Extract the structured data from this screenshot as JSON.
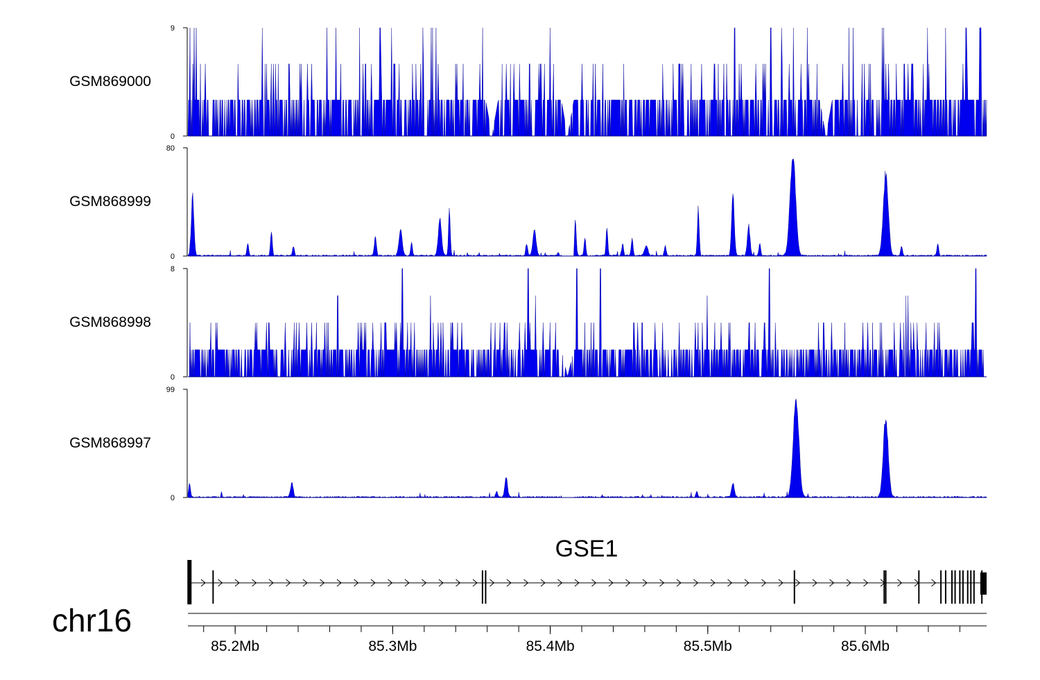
{
  "chart_data": {
    "type": "area",
    "chromosome": "chr16",
    "x_range_mb": [
      85.17,
      85.677
    ],
    "x_ticks": [
      {
        "value": 85.2,
        "label": "85.2Mb"
      },
      {
        "value": 85.3,
        "label": "85.3Mb"
      },
      {
        "value": 85.4,
        "label": "85.4Mb"
      },
      {
        "value": 85.5,
        "label": "85.5Mb"
      },
      {
        "value": 85.6,
        "label": "85.6Mb"
      }
    ],
    "fill_color": "#0000ee",
    "tracks": [
      {
        "name": "GSM869000",
        "ymin_label": "0",
        "ymax_label": "9",
        "ylim": [
          0,
          9
        ],
        "signal": "sparse-discrete",
        "baseline": 3,
        "levels": [
          3,
          6,
          9
        ],
        "gaps": [
          85.363,
          85.411,
          85.575
        ],
        "spikes": [
          [
            85.292,
            9
          ],
          [
            85.517,
            9
          ],
          [
            85.54,
            9
          ],
          [
            85.664,
            9
          ],
          [
            85.673,
            9
          ]
        ]
      },
      {
        "name": "GSM868999",
        "ymin_label": "0",
        "ymax_label": "80",
        "ylim": [
          0,
          80
        ],
        "signal": "peaks",
        "peaks": [
          [
            85.173,
            48,
            0.0012
          ],
          [
            85.208,
            10,
            0.0008
          ],
          [
            85.223,
            20,
            0.0008
          ],
          [
            85.237,
            8,
            0.0008
          ],
          [
            85.289,
            14,
            0.001
          ],
          [
            85.305,
            20,
            0.0015
          ],
          [
            85.312,
            10,
            0.0008
          ],
          [
            85.33,
            28,
            0.0015
          ],
          [
            85.336,
            38,
            0.0008
          ],
          [
            85.385,
            10,
            0.0008
          ],
          [
            85.39,
            20,
            0.0015
          ],
          [
            85.405,
            2,
            0.0008
          ],
          [
            85.416,
            28,
            0.0008
          ],
          [
            85.422,
            14,
            0.0008
          ],
          [
            85.436,
            22,
            0.0008
          ],
          [
            85.446,
            10,
            0.0008
          ],
          [
            85.452,
            14,
            0.0008
          ],
          [
            85.461,
            8,
            0.0015
          ],
          [
            85.473,
            8,
            0.0008
          ],
          [
            85.494,
            38,
            0.0008
          ],
          [
            85.516,
            50,
            0.0012
          ],
          [
            85.526,
            24,
            0.0012
          ],
          [
            85.533,
            10,
            0.0008
          ],
          [
            85.554,
            78,
            0.0025
          ],
          [
            85.613,
            66,
            0.0022
          ],
          [
            85.623,
            8,
            0.0008
          ],
          [
            85.646,
            10,
            0.0008
          ]
        ]
      },
      {
        "name": "GSM868998",
        "ymin_label": "0",
        "ymax_label": "8",
        "ylim": [
          0,
          8
        ],
        "signal": "sparse-discrete",
        "baseline": 2,
        "levels": [
          2,
          4,
          6,
          8
        ],
        "gaps": [
          85.411
        ],
        "spikes": [
          [
            85.306,
            8
          ],
          [
            85.386,
            8
          ],
          [
            85.417,
            8
          ],
          [
            85.432,
            8
          ],
          [
            85.539,
            8
          ],
          [
            85.67,
            8
          ]
        ]
      },
      {
        "name": "GSM868997",
        "ymin_label": "0",
        "ymax_label": "99",
        "ylim": [
          0,
          99
        ],
        "signal": "peaks",
        "peaks": [
          [
            85.171,
            14,
            0.0008
          ],
          [
            85.236,
            14,
            0.0012
          ],
          [
            85.372,
            20,
            0.0012
          ],
          [
            85.366,
            6,
            0.0008
          ],
          [
            85.516,
            15,
            0.0012
          ],
          [
            85.556,
            97,
            0.0025
          ],
          [
            85.613,
            78,
            0.0022
          ],
          [
            85.493,
            6,
            0.0008
          ]
        ]
      }
    ],
    "gene": {
      "name": "GSE1",
      "strand": "+",
      "start_mb": 85.17,
      "end_mb": 85.677,
      "exons_mb": [
        85.171,
        85.186,
        85.357,
        85.359,
        85.555,
        85.612,
        85.613,
        85.634,
        85.648,
        85.651,
        85.655,
        85.657,
        85.66,
        85.662,
        85.665,
        85.667,
        85.669,
        85.674
      ]
    }
  }
}
